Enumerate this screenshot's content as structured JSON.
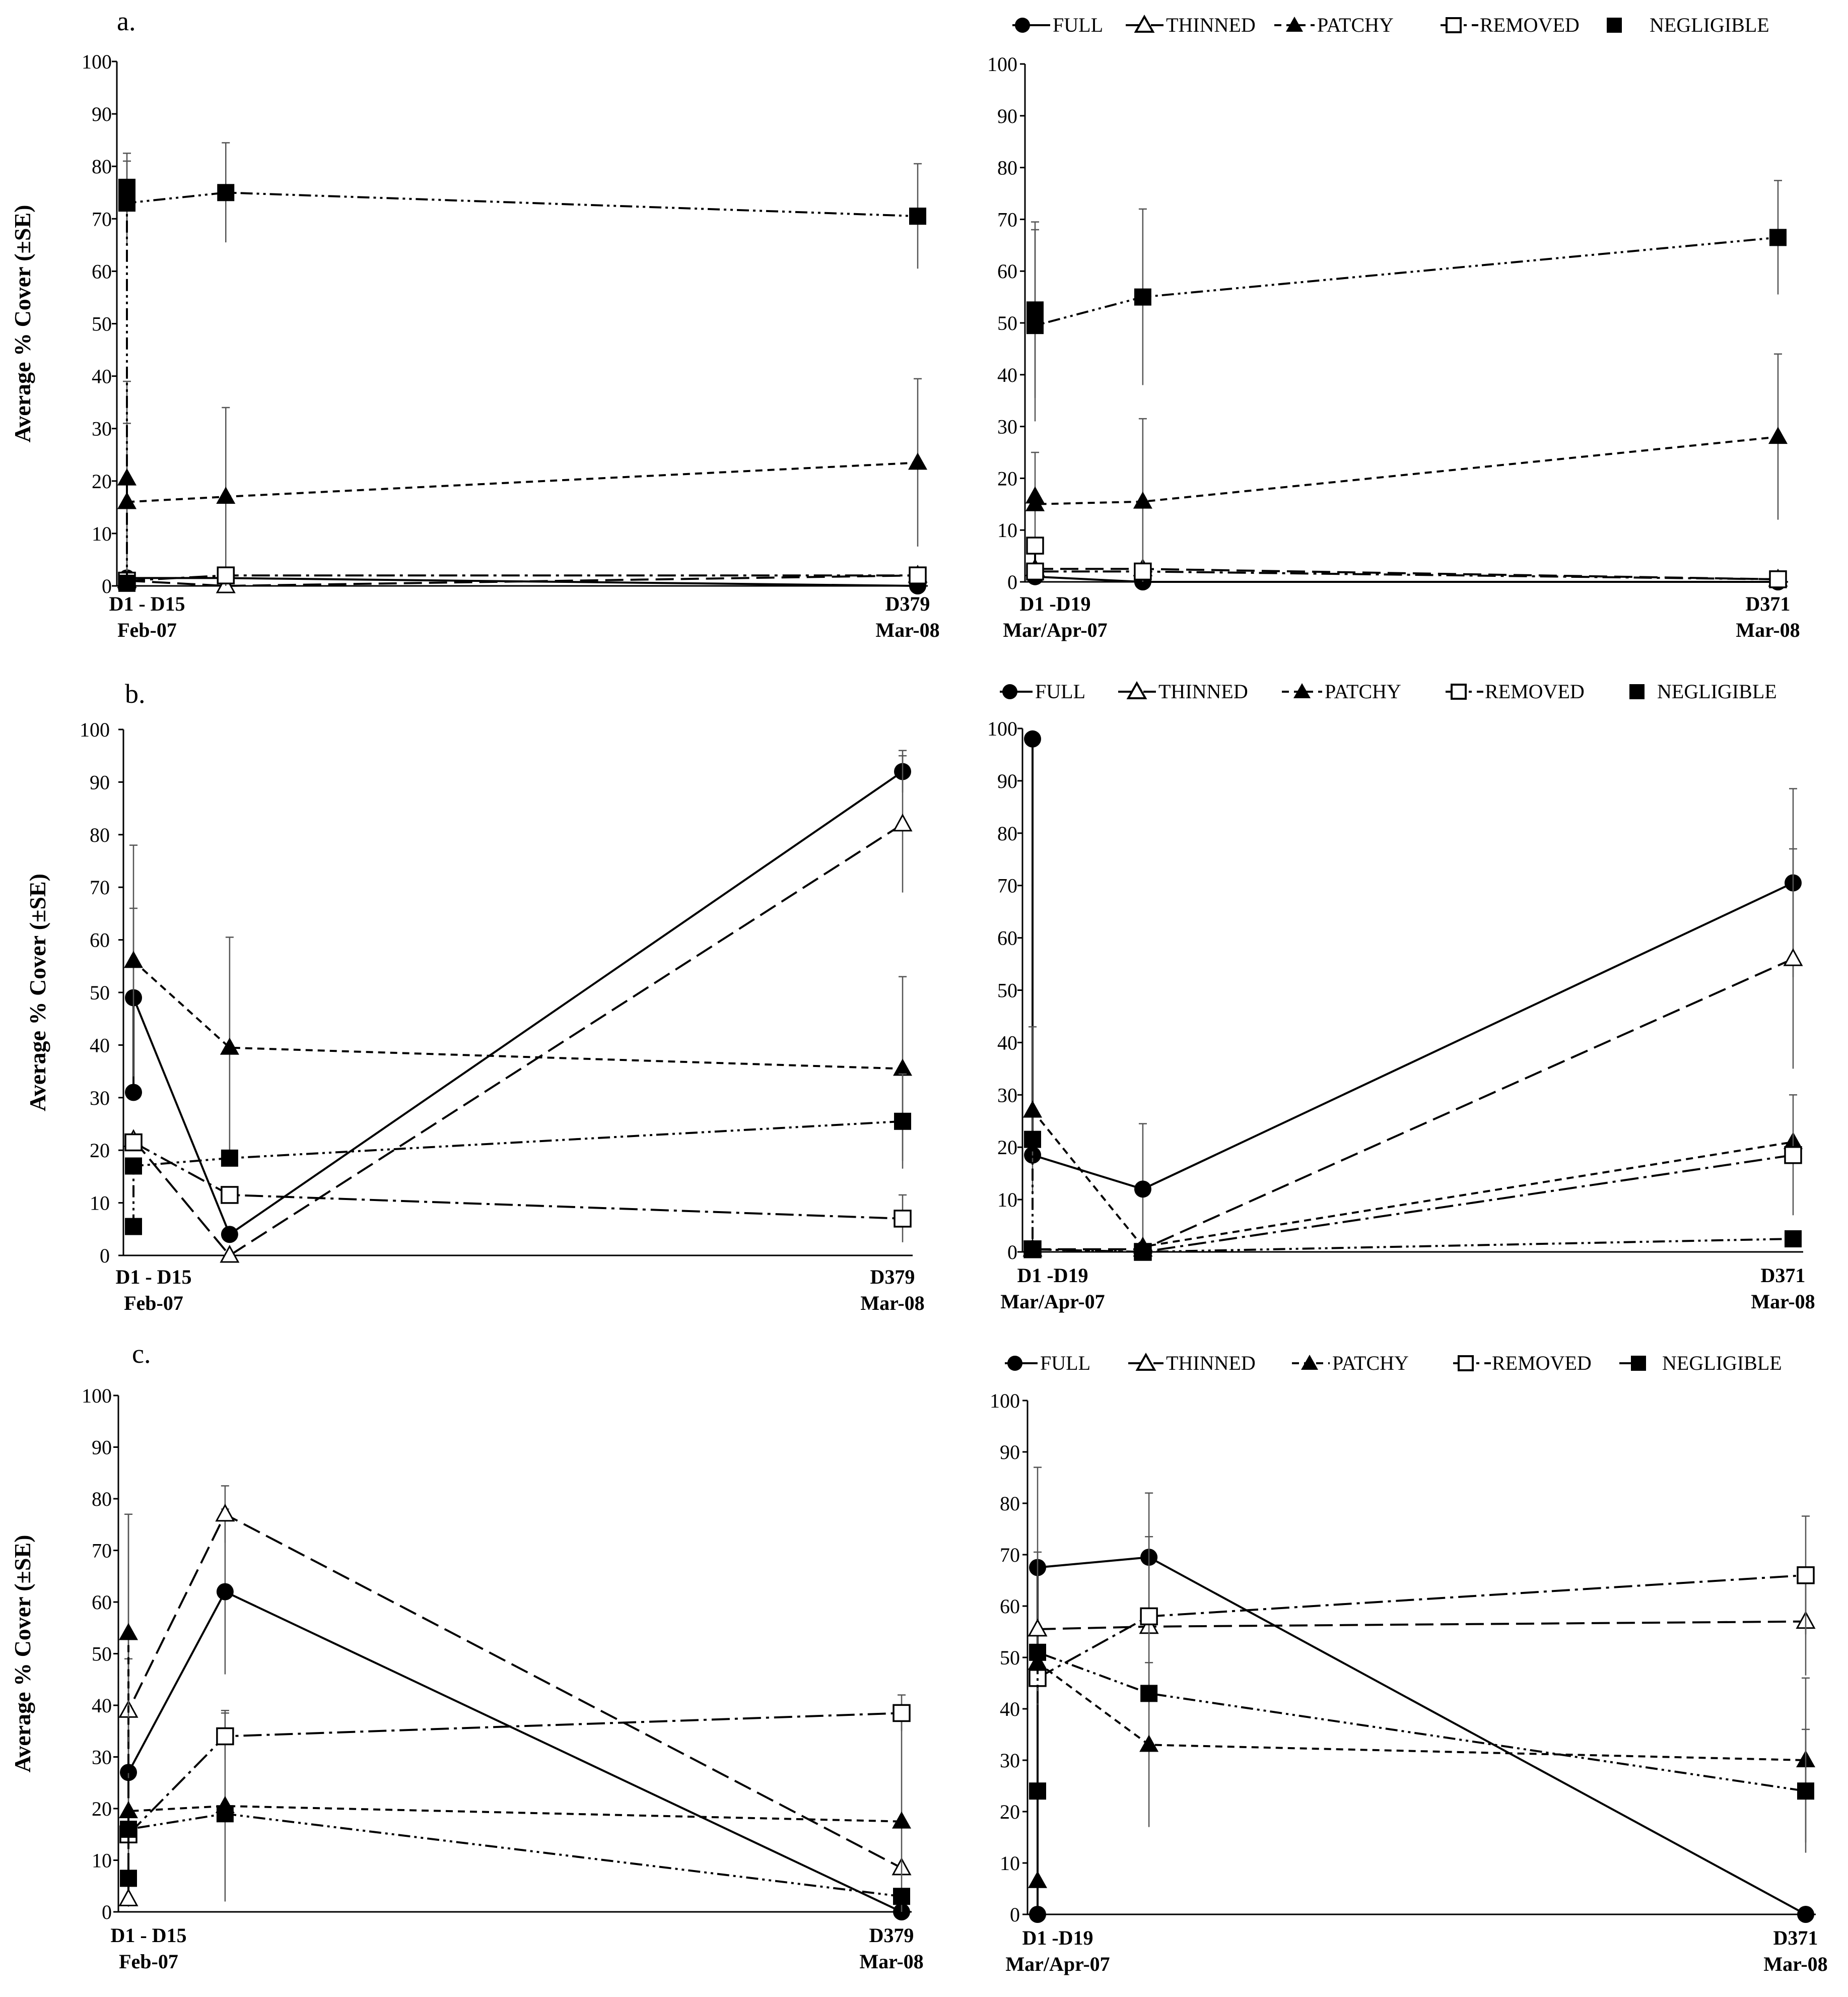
{
  "figure": {
    "panel_labels": [
      "a.",
      "b.",
      "c."
    ],
    "y_axis_label": "Average % Cover (±SE)"
  },
  "legend": {
    "entries": [
      {
        "name": "FULL",
        "marker": "circle-filled",
        "dash": "solid"
      },
      {
        "name": "THINNED",
        "marker": "triangle-open",
        "dash": "long-dash"
      },
      {
        "name": "PATCHY",
        "marker": "triangle-filled",
        "dash": "short-dash"
      },
      {
        "name": "REMOVED",
        "marker": "square-open",
        "dash": "dash-dot"
      },
      {
        "name": "NEGLIGIBLE",
        "marker": "square-filled",
        "dash": "dash-dot-dot"
      }
    ]
  },
  "chart_data": [
    {
      "id": "a-left",
      "type": "line",
      "ylim": [
        0,
        100
      ],
      "yticks": [
        0,
        10,
        20,
        30,
        40,
        50,
        60,
        70,
        80,
        90,
        100
      ],
      "ylabel": "Average % Cover (±SE)",
      "x_labels": [
        {
          "x": 1,
          "line1": "D1  -  D15",
          "line2": "Feb-07"
        },
        {
          "x": 379,
          "line1": "D379",
          "line2": "Mar-08"
        }
      ],
      "series": [
        {
          "name": "FULL",
          "points": [
            [
              1,
              1.5
            ],
            [
              15,
              1.5
            ],
            [
              379,
              0
            ]
          ],
          "err": [
            [
              1,
              1.5,
              0.5
            ]
          ]
        },
        {
          "name": "THINNED",
          "points": [
            [
              1,
              1
            ],
            [
              15,
              0
            ],
            [
              379,
              2
            ]
          ],
          "err": []
        },
        {
          "name": "PATCHY",
          "points": [
            [
              1,
              20.5
            ],
            [
              1,
              16
            ],
            [
              15,
              17
            ],
            [
              379,
              23.5
            ]
          ],
          "err": [
            [
              1,
              20.5,
              18.5
            ],
            [
              1,
              16,
              15
            ],
            [
              15,
              17,
              17
            ],
            [
              379,
              23.5,
              16
            ]
          ]
        },
        {
          "name": "REMOVED",
          "points": [
            [
              1,
              1
            ],
            [
              15,
              2
            ],
            [
              379,
              2
            ]
          ],
          "err": []
        },
        {
          "name": "NEGLIGIBLE",
          "points": [
            [
              1,
              0.5
            ],
            [
              1,
              76
            ],
            [
              1,
              73
            ],
            [
              15,
              75
            ],
            [
              379,
              70.5
            ]
          ],
          "err": [
            [
              1,
              76,
              6.5
            ],
            [
              1,
              73,
              8
            ],
            [
              15,
              75,
              9.5
            ],
            [
              379,
              70.5,
              10
            ]
          ]
        }
      ]
    },
    {
      "id": "a-right",
      "type": "line",
      "ylim": [
        0,
        100
      ],
      "yticks": [
        0,
        10,
        20,
        30,
        40,
        50,
        60,
        70,
        80,
        90,
        100
      ],
      "x_labels": [
        {
          "x": 1,
          "line1": "D1 -D19",
          "line2": "Mar/Apr-07"
        },
        {
          "x": 371,
          "line1": "D371",
          "line2": "Mar-08"
        }
      ],
      "series": [
        {
          "name": "FULL",
          "points": [
            [
              1,
              1
            ],
            [
              19,
              0
            ],
            [
              371,
              0
            ]
          ],
          "err": []
        },
        {
          "name": "THINNED",
          "points": [
            [
              1,
              2.5
            ],
            [
              19,
              2.5
            ],
            [
              371,
              0.5
            ]
          ],
          "err": []
        },
        {
          "name": "PATCHY",
          "points": [
            [
              1,
              16.5
            ],
            [
              1,
              15
            ],
            [
              19,
              15.5
            ],
            [
              371,
              28
            ]
          ],
          "err": [
            [
              1,
              16.5,
              8.5
            ],
            [
              19,
              15.5,
              16
            ],
            [
              371,
              28,
              16
            ]
          ]
        },
        {
          "name": "REMOVED",
          "points": [
            [
              1,
              7
            ],
            [
              1,
              2
            ],
            [
              19,
              2
            ],
            [
              371,
              0.5
            ]
          ],
          "err": []
        },
        {
          "name": "NEGLIGIBLE",
          "points": [
            [
              1,
              52.5
            ],
            [
              1,
              49.5
            ],
            [
              19,
              55
            ],
            [
              371,
              66.5
            ]
          ],
          "err": [
            [
              1,
              52.5,
              17
            ],
            [
              1,
              49.5,
              18.5
            ],
            [
              19,
              55,
              17
            ],
            [
              371,
              66.5,
              11
            ]
          ]
        }
      ]
    },
    {
      "id": "b-left",
      "type": "line",
      "ylim": [
        0,
        100
      ],
      "yticks": [
        0,
        10,
        20,
        30,
        40,
        50,
        60,
        70,
        80,
        90,
        100
      ],
      "ylabel": "Average % Cover (±SE)",
      "x_labels": [
        {
          "x": 1,
          "line1": "D1  -  D15",
          "line2": "Feb-07"
        },
        {
          "x": 379,
          "line1": "D379",
          "line2": "Mar-08"
        }
      ],
      "series": [
        {
          "name": "FULL",
          "points": [
            [
              1,
              31
            ],
            [
              1,
              49
            ],
            [
              15,
              4
            ],
            [
              379,
              92
            ]
          ],
          "err": [
            [
              1,
              49,
              17
            ],
            [
              379,
              92,
              4
            ]
          ]
        },
        {
          "name": "THINNED",
          "points": [
            [
              1,
              22
            ],
            [
              15,
              0
            ],
            [
              379,
              82
            ]
          ],
          "err": [
            [
              379,
              82,
              13
            ]
          ]
        },
        {
          "name": "PATCHY",
          "points": [
            [
              1,
              56
            ],
            [
              15,
              39.5
            ],
            [
              379,
              35.5
            ]
          ],
          "err": [
            [
              1,
              56,
              22
            ],
            [
              15,
              39.5,
              21
            ],
            [
              379,
              35.5,
              17.5
            ]
          ]
        },
        {
          "name": "REMOVED",
          "points": [
            [
              1,
              21.5
            ],
            [
              15,
              11.5
            ],
            [
              379,
              7
            ]
          ],
          "err": [
            [
              379,
              7,
              4.5
            ]
          ]
        },
        {
          "name": "NEGLIGIBLE",
          "points": [
            [
              1,
              5.5
            ],
            [
              1,
              17
            ],
            [
              15,
              18.5
            ],
            [
              379,
              25.5
            ]
          ],
          "err": [
            [
              379,
              25.5,
              9
            ]
          ]
        }
      ]
    },
    {
      "id": "b-right",
      "type": "line",
      "ylim": [
        0,
        100
      ],
      "yticks": [
        0,
        10,
        20,
        30,
        40,
        50,
        60,
        70,
        80,
        90,
        100
      ],
      "x_labels": [
        {
          "x": 1,
          "line1": "D1 -D19",
          "line2": "Mar/Apr-07"
        },
        {
          "x": 371,
          "line1": "D371",
          "line2": "Mar-08"
        }
      ],
      "series": [
        {
          "name": "FULL",
          "points": [
            [
              1,
              98
            ],
            [
              1,
              18.5
            ],
            [
              19,
              12
            ],
            [
              371,
              70.5
            ]
          ],
          "err": [
            [
              19,
              12,
              12.5
            ],
            [
              371,
              70.5,
              18
            ]
          ]
        },
        {
          "name": "THINNED",
          "points": [
            [
              1,
              0.5
            ],
            [
              19,
              0.5
            ],
            [
              371,
              56
            ]
          ],
          "err": [
            [
              371,
              56,
              21
            ]
          ]
        },
        {
          "name": "PATCHY",
          "points": [
            [
              1,
              27
            ],
            [
              19,
              1
            ],
            [
              371,
              21
            ]
          ],
          "err": [
            [
              1,
              27,
              16
            ]
          ]
        },
        {
          "name": "REMOVED",
          "points": [
            [
              1,
              0.5
            ],
            [
              19,
              0
            ],
            [
              371,
              18.5
            ]
          ],
          "err": [
            [
              371,
              18.5,
              11.5
            ]
          ]
        },
        {
          "name": "NEGLIGIBLE",
          "points": [
            [
              1,
              21.5
            ],
            [
              1,
              0.5
            ],
            [
              19,
              0
            ],
            [
              371,
              2.5
            ]
          ],
          "err": []
        }
      ]
    },
    {
      "id": "c-left",
      "type": "line",
      "ylim": [
        0,
        100
      ],
      "yticks": [
        0,
        10,
        20,
        30,
        40,
        50,
        60,
        70,
        80,
        90,
        100
      ],
      "ylabel": "Average % Cover (±SE)",
      "x_labels": [
        {
          "x": 1,
          "line1": "D1  -  D15",
          "line2": "Feb-07"
        },
        {
          "x": 379,
          "line1": "D379",
          "line2": "Mar-08"
        }
      ],
      "series": [
        {
          "name": "FULL",
          "points": [
            [
              1,
              27
            ],
            [
              15,
              62
            ],
            [
              379,
              0
            ]
          ],
          "err": [
            [
              1,
              27,
              22
            ],
            [
              15,
              62,
              16
            ]
          ]
        },
        {
          "name": "THINNED",
          "points": [
            [
              1,
              2.5
            ],
            [
              1,
              39
            ],
            [
              15,
              77
            ],
            [
              379,
              8.5
            ]
          ],
          "err": [
            [
              1,
              39,
              38
            ],
            [
              15,
              77,
              5.5
            ]
          ]
        },
        {
          "name": "PATCHY",
          "points": [
            [
              1,
              54
            ],
            [
              1,
              19.5
            ],
            [
              15,
              20.5
            ],
            [
              379,
              17.5
            ]
          ],
          "err": [
            [
              1,
              54,
              23
            ],
            [
              15,
              20.5,
              18.5
            ],
            [
              379,
              17.5,
              21
            ]
          ]
        },
        {
          "name": "REMOVED",
          "points": [
            [
              1,
              15
            ],
            [
              15,
              34
            ],
            [
              379,
              38.5
            ]
          ],
          "err": [
            [
              15,
              34,
              4.5
            ],
            [
              379,
              38.5,
              3.5
            ]
          ]
        },
        {
          "name": "NEGLIGIBLE",
          "points": [
            [
              1,
              6.5
            ],
            [
              1,
              16
            ],
            [
              15,
              19
            ],
            [
              379,
              3
            ]
          ],
          "err": []
        }
      ]
    },
    {
      "id": "c-right",
      "type": "line",
      "ylim": [
        0,
        100
      ],
      "yticks": [
        0,
        10,
        20,
        30,
        40,
        50,
        60,
        70,
        80,
        90,
        100
      ],
      "x_labels": [
        {
          "x": 1,
          "line1": "D1 -D19",
          "line2": "Mar/Apr-07"
        },
        {
          "x": 371,
          "line1": "D371",
          "line2": "Mar-08"
        }
      ],
      "series": [
        {
          "name": "FULL",
          "points": [
            [
              1,
              0
            ],
            [
              1,
              67.5
            ],
            [
              19,
              69.5
            ],
            [
              371,
              0
            ]
          ],
          "err": [
            [
              1,
              67.5,
              19.5
            ],
            [
              19,
              69.5,
              12.5
            ]
          ]
        },
        {
          "name": "THINNED",
          "points": [
            [
              1,
              55.5
            ],
            [
              19,
              56
            ],
            [
              371,
              57
            ]
          ],
          "err": [
            [
              1,
              55.5,
              15
            ],
            [
              371,
              57,
              10.5
            ]
          ]
        },
        {
          "name": "PATCHY",
          "points": [
            [
              1,
              6.5
            ],
            [
              1,
              49
            ],
            [
              19,
              33
            ],
            [
              371,
              30
            ]
          ],
          "err": [
            [
              19,
              33,
              16
            ],
            [
              371,
              30,
              16
            ]
          ]
        },
        {
          "name": "REMOVED",
          "points": [
            [
              1,
              46
            ],
            [
              19,
              58
            ],
            [
              371,
              66
            ]
          ],
          "err": [
            [
              19,
              58,
              15.5
            ],
            [
              371,
              66,
              11.5
            ]
          ]
        },
        {
          "name": "NEGLIGIBLE",
          "points": [
            [
              1,
              24
            ],
            [
              1,
              51
            ],
            [
              19,
              43
            ],
            [
              371,
              24
            ]
          ],
          "err": [
            [
              371,
              24,
              12
            ]
          ]
        }
      ]
    }
  ]
}
